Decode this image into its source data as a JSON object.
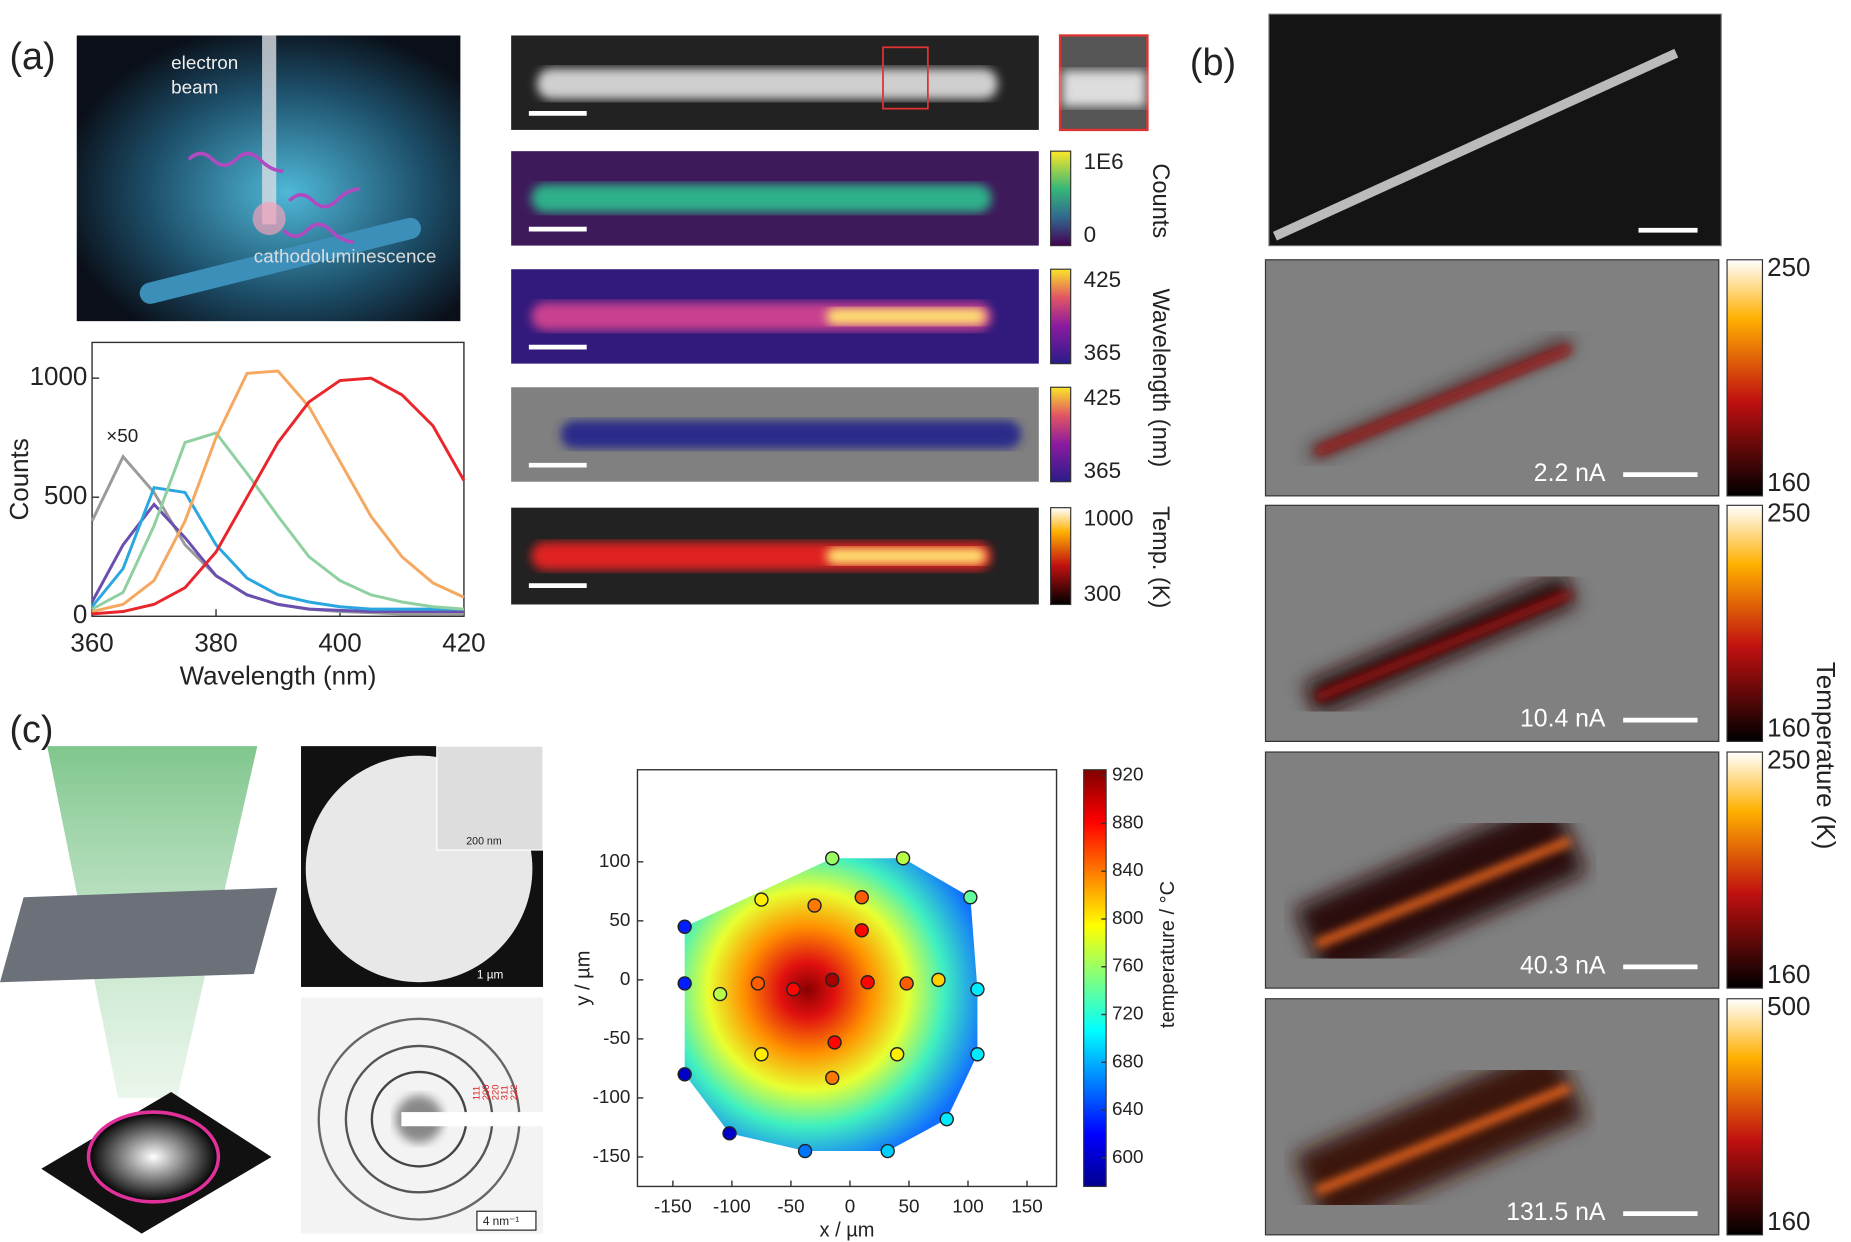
{
  "figure": {
    "labels": [
      "(a)",
      "(b)",
      "(c)"
    ]
  },
  "panel_a": {
    "beam_label": [
      "electron",
      "beam"
    ],
    "emission_label": "cathodoluminescence",
    "maps": [
      {
        "colorbar": [
          "1E6",
          "0"
        ],
        "side_label": "Counts"
      },
      {
        "colorbar": [
          "425",
          "365"
        ]
      },
      {
        "colorbar": [
          "425",
          "365"
        ]
      },
      {
        "colorbar": [
          "1000",
          "300"
        ],
        "side_label": "Temp. (K)"
      }
    ],
    "wavelength_label": "Wavelength (nm)"
  },
  "panel_b": {
    "maps": [
      {
        "current": "2.2 nA",
        "colorbar": [
          "250",
          "160"
        ]
      },
      {
        "current": "10.4 nA",
        "colorbar": [
          "250",
          "160"
        ]
      },
      {
        "current": "40.3 nA",
        "colorbar": [
          "250",
          "160"
        ]
      },
      {
        "current": "131.5 nA",
        "colorbar": [
          "500",
          "160"
        ]
      }
    ],
    "colorbar_label": "Temperature (K)"
  },
  "panel_c": {
    "tem_inset_scale": "200 nm",
    "tem_scale": "1 µm",
    "diffraction_scale": "4 nm⁻¹",
    "diffraction_rings": [
      "111",
      "200",
      "220",
      "311",
      "222"
    ]
  },
  "chart_data": [
    {
      "type": "line",
      "x_label": "Wavelength (nm)",
      "y_label": "Counts",
      "annotation": "×50",
      "x": [
        360,
        365,
        370,
        375,
        380,
        385,
        390,
        395,
        400,
        405,
        410,
        415,
        420
      ],
      "series": [
        {
          "color": "#9a9a9a",
          "values": [
            400,
            670,
            520,
            300,
            170,
            90,
            50,
            30,
            20,
            15,
            10,
            10,
            10
          ]
        },
        {
          "color": "#6a4fb0",
          "values": [
            60,
            300,
            470,
            330,
            170,
            90,
            50,
            30,
            25,
            20,
            20,
            20,
            20
          ]
        },
        {
          "color": "#2aa7e0",
          "values": [
            40,
            200,
            540,
            520,
            300,
            160,
            90,
            60,
            40,
            30,
            30,
            30,
            30
          ]
        },
        {
          "color": "#8fd0a0",
          "values": [
            30,
            100,
            380,
            730,
            770,
            600,
            420,
            250,
            150,
            90,
            60,
            40,
            30
          ]
        },
        {
          "color": "#f5a860",
          "values": [
            20,
            50,
            150,
            400,
            750,
            1020,
            1030,
            880,
            650,
            420,
            250,
            140,
            80
          ]
        },
        {
          "color": "#e8262c",
          "values": [
            10,
            20,
            50,
            120,
            270,
            500,
            730,
            900,
            990,
            1000,
            930,
            800,
            570
          ]
        }
      ],
      "xlim": [
        360,
        420
      ],
      "ylim": [
        0,
        1150
      ],
      "xticks": [
        360,
        380,
        400,
        420
      ],
      "yticks": [
        0,
        500,
        1000
      ]
    },
    {
      "type": "scatter",
      "x_label": "x / µm",
      "y_label": "y / µm",
      "x": [
        -140,
        -140,
        -140,
        -102,
        -110,
        -75,
        -78,
        -75,
        -48,
        -30,
        -15,
        -15,
        -13,
        -15,
        10,
        10,
        15,
        45,
        48,
        40,
        75,
        102,
        108,
        108,
        82,
        32,
        -38
      ],
      "y": [
        45,
        -3,
        -80,
        -130,
        -12,
        68,
        -3,
        -63,
        -8,
        63,
        103,
        0,
        -53,
        -83,
        70,
        42,
        -2,
        103,
        -3,
        -63,
        0,
        70,
        -8,
        -63,
        -118,
        -145,
        -145
      ],
      "c": [
        630,
        630,
        600,
        600,
        770,
        800,
        850,
        800,
        880,
        840,
        760,
        910,
        880,
        840,
        850,
        880,
        880,
        770,
        850,
        800,
        810,
        740,
        700,
        700,
        700,
        690,
        660
      ],
      "colormap": "jet",
      "xlim": [
        -180,
        175
      ],
      "ylim": [
        -175,
        178
      ],
      "xticks": [
        -150,
        -100,
        -50,
        0,
        50,
        100,
        150
      ],
      "yticks": [
        -150,
        -100,
        -50,
        0,
        50,
        100
      ],
      "colorbar": {
        "label": "temperature / °C",
        "clim": [
          576,
          925
        ],
        "ticks": [
          600,
          640,
          680,
          720,
          760,
          800,
          840,
          880,
          920
        ]
      }
    }
  ]
}
